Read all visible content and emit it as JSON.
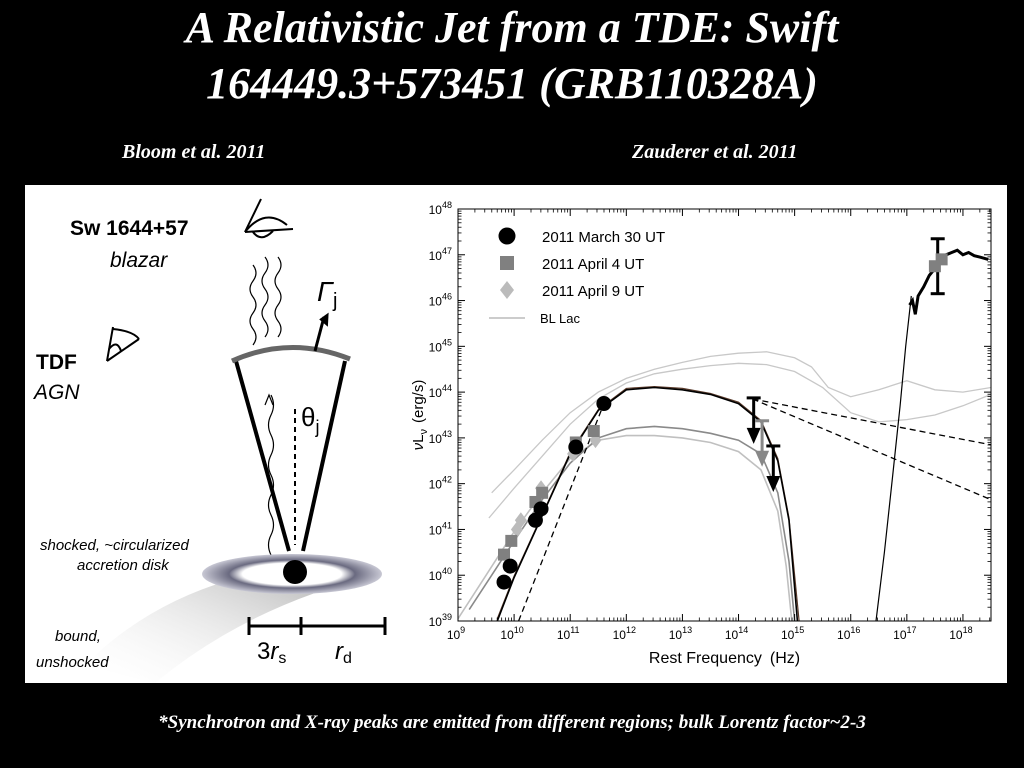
{
  "slide": {
    "title_line1": "A Relativistic Jet from a TDE: Swift",
    "title_line2": "164449.3+573451 (GRB110328A)",
    "cite_left": "Bloom et al. 2011",
    "cite_right": "Zauderer et al. 2011",
    "footnote": "*Synchrotron and X-ray peaks are emitted from different regions; bulk Lorentz factor~2-3"
  },
  "diagram": {
    "source_name": "Sw 1644+57",
    "source_type": "blazar",
    "tdf_label": "TDF",
    "agn_label": "AGN",
    "gamma_symbol": "Γ",
    "gamma_sub": "j",
    "theta_symbol": "θ",
    "theta_sub": "j",
    "disk_label_1": "shocked, ~circularized",
    "disk_label_2": "accretion disk",
    "bound_label_1": "bound,",
    "bound_label_2": "unshocked",
    "rs_prefix": "3",
    "rs_symbol": "r",
    "rs_sub": "s",
    "rd_symbol": "r",
    "rd_sub": "d"
  },
  "chart_data": {
    "type": "scatter",
    "xlabel": "Rest Frequency",
    "xunit": "(Hz)",
    "ylabel_nu": "ν",
    "ylabel_L": "L",
    "ylabel_sub": "ν",
    "yunit": "(erg/s)",
    "xscale": "log",
    "yscale": "log",
    "xlim_log10": [
      9,
      18.5
    ],
    "ylim_log10": [
      39,
      48
    ],
    "xticks": [
      9,
      10,
      11,
      12,
      13,
      14,
      15,
      16,
      17,
      18
    ],
    "yticks": [
      39,
      40,
      41,
      42,
      43,
      44,
      45,
      46,
      47,
      48
    ],
    "tick_base": "10",
    "legend_position": "top-left",
    "legend": [
      {
        "label": "2011 March 30 UT",
        "marker": "circle",
        "color": "#000000"
      },
      {
        "label": "2011 April 4 UT",
        "marker": "square",
        "color": "#808080"
      },
      {
        "label": "2011 April 9 UT",
        "marker": "diamond",
        "color": "#bbbbbb"
      },
      {
        "label": "BL Lac",
        "marker": "line",
        "color": "#bbbbbb"
      }
    ],
    "series": [
      {
        "name": "2011 March 30 UT",
        "marker": "circle",
        "color": "#000000",
        "points": [
          [
            9.82,
            39.85
          ],
          [
            9.93,
            40.2
          ],
          [
            10.38,
            41.2
          ],
          [
            10.48,
            41.45
          ],
          [
            11.1,
            42.8
          ],
          [
            11.6,
            43.75
          ]
        ]
      },
      {
        "name": "2011 April 4 UT",
        "marker": "square",
        "color": "#808080",
        "points": [
          [
            9.82,
            40.45
          ],
          [
            9.95,
            40.75
          ],
          [
            10.38,
            41.6
          ],
          [
            10.5,
            41.8
          ],
          [
            11.1,
            42.9
          ],
          [
            11.42,
            43.15
          ]
        ]
      },
      {
        "name": "2011 April 9 UT",
        "marker": "diamond",
        "color": "#bbbbbb",
        "points": [
          [
            10.05,
            41.0
          ],
          [
            10.12,
            41.2
          ],
          [
            10.48,
            41.9
          ],
          [
            11.05,
            42.65
          ],
          [
            11.45,
            42.95
          ]
        ]
      },
      {
        "name": "X-ray",
        "marker": "square",
        "color": "#808080",
        "points": [
          [
            17.5,
            46.75
          ],
          [
            17.62,
            46.9
          ]
        ]
      }
    ],
    "upper_limits": [
      {
        "x": 14.27,
        "y": 43.0,
        "color": "#000000",
        "bar": true
      },
      {
        "x": 14.42,
        "y": 42.5,
        "color": "#888888",
        "bar": true
      },
      {
        "x": 14.62,
        "y": 41.95,
        "color": "#000000",
        "bar": true
      }
    ],
    "errorbars": [
      {
        "x": 17.55,
        "ylo": 46.15,
        "yhi": 47.35,
        "color": "#000000"
      }
    ],
    "curves": [
      {
        "style": "black-model",
        "points": [
          [
            9.7,
            39.0
          ],
          [
            10.0,
            39.95
          ],
          [
            10.5,
            41.3
          ],
          [
            11.0,
            42.65
          ],
          [
            11.5,
            43.6
          ],
          [
            12.0,
            44.05
          ],
          [
            12.5,
            44.1
          ],
          [
            13.0,
            44.05
          ],
          [
            13.5,
            43.95
          ],
          [
            14.0,
            43.75
          ],
          [
            14.4,
            43.35
          ],
          [
            14.7,
            42.5
          ],
          [
            14.9,
            41.2
          ],
          [
            15.05,
            39.0
          ]
        ]
      },
      {
        "style": "dark-model",
        "points": [
          [
            9.7,
            39.05
          ],
          [
            10.0,
            39.98
          ],
          [
            10.5,
            41.32
          ],
          [
            11.0,
            42.68
          ],
          [
            11.5,
            43.62
          ],
          [
            12.0,
            44.08
          ],
          [
            12.5,
            44.12
          ],
          [
            13.0,
            44.08
          ],
          [
            13.5,
            43.97
          ],
          [
            14.0,
            43.78
          ],
          [
            14.4,
            43.38
          ],
          [
            14.7,
            42.55
          ],
          [
            14.9,
            41.25
          ],
          [
            15.08,
            39.0
          ]
        ]
      },
      {
        "style": "grey-model",
        "points": [
          [
            9.2,
            39.25
          ],
          [
            9.6,
            40.0
          ],
          [
            10.0,
            40.75
          ],
          [
            10.5,
            41.65
          ],
          [
            11.0,
            42.45
          ],
          [
            11.5,
            43.0
          ],
          [
            12.0,
            43.2
          ],
          [
            12.5,
            43.25
          ],
          [
            13.0,
            43.2
          ],
          [
            13.5,
            43.1
          ],
          [
            14.0,
            42.95
          ],
          [
            14.4,
            42.65
          ],
          [
            14.7,
            41.8
          ],
          [
            14.9,
            40.3
          ],
          [
            15.0,
            39.0
          ]
        ]
      },
      {
        "style": "lightgrey-model",
        "points": [
          [
            9.0,
            39.05
          ],
          [
            9.5,
            40.0
          ],
          [
            10.0,
            40.95
          ],
          [
            10.5,
            41.8
          ],
          [
            11.0,
            42.55
          ],
          [
            11.5,
            42.95
          ],
          [
            12.0,
            43.05
          ],
          [
            12.5,
            43.05
          ],
          [
            13.0,
            43.0
          ],
          [
            13.5,
            42.9
          ],
          [
            14.0,
            42.7
          ],
          [
            14.4,
            42.3
          ],
          [
            14.7,
            41.4
          ],
          [
            14.85,
            40.2
          ],
          [
            14.95,
            39.0
          ]
        ]
      },
      {
        "style": "bllac",
        "points": [
          [
            9.6,
            41.8
          ],
          [
            10.0,
            42.3
          ],
          [
            10.5,
            42.95
          ],
          [
            11.0,
            43.55
          ],
          [
            11.5,
            44.0
          ],
          [
            12.0,
            44.3
          ],
          [
            12.5,
            44.5
          ],
          [
            13.0,
            44.65
          ],
          [
            13.5,
            44.78
          ],
          [
            14.0,
            44.85
          ],
          [
            14.5,
            44.88
          ],
          [
            15.0,
            44.75
          ],
          [
            15.3,
            44.55
          ],
          [
            15.6,
            44.1
          ],
          [
            16.0,
            43.9
          ],
          [
            16.5,
            44.05
          ],
          [
            17.0,
            44.25
          ],
          [
            17.5,
            44.05
          ],
          [
            18.0,
            44.0
          ],
          [
            18.5,
            44.1
          ]
        ]
      },
      {
        "style": "bllac",
        "points": [
          [
            9.55,
            41.25
          ],
          [
            10.0,
            41.9
          ],
          [
            10.5,
            42.6
          ],
          [
            11.0,
            43.3
          ],
          [
            11.5,
            43.85
          ],
          [
            12.0,
            44.2
          ],
          [
            12.5,
            44.4
          ],
          [
            13.0,
            44.5
          ],
          [
            13.5,
            44.58
          ],
          [
            14.0,
            44.63
          ],
          [
            14.5,
            44.6
          ],
          [
            15.0,
            44.45
          ],
          [
            15.5,
            44.1
          ],
          [
            16.0,
            43.55
          ],
          [
            16.5,
            43.35
          ],
          [
            17.0,
            43.4
          ],
          [
            17.5,
            43.5
          ],
          [
            18.0,
            43.7
          ],
          [
            18.5,
            43.95
          ]
        ]
      },
      {
        "style": "dashed",
        "points": [
          [
            14.25,
            43.85
          ],
          [
            18.5,
            42.85
          ]
        ]
      },
      {
        "style": "dashed",
        "points": [
          [
            14.25,
            43.85
          ],
          [
            18.5,
            41.65
          ]
        ]
      },
      {
        "style": "dashed",
        "points": [
          [
            10.08,
            39.0
          ],
          [
            11.6,
            43.75
          ]
        ]
      },
      {
        "style": "xray-steep",
        "points": [
          [
            16.45,
            39.0
          ],
          [
            16.6,
            40.5
          ],
          [
            16.75,
            42.2
          ],
          [
            16.88,
            43.7
          ],
          [
            16.98,
            45.0
          ],
          [
            17.08,
            46.1
          ]
        ]
      },
      {
        "style": "xray-data",
        "points": [
          [
            17.05,
            45.9
          ],
          [
            17.1,
            46.0
          ],
          [
            17.15,
            45.7
          ],
          [
            17.2,
            46.1
          ],
          [
            17.3,
            46.3
          ],
          [
            17.4,
            46.55
          ],
          [
            17.5,
            46.7
          ],
          [
            17.6,
            46.85
          ],
          [
            17.7,
            47.0
          ],
          [
            17.8,
            47.05
          ],
          [
            17.9,
            47.1
          ],
          [
            18.0,
            47.0
          ],
          [
            18.1,
            47.05
          ],
          [
            18.2,
            46.98
          ],
          [
            18.3,
            46.95
          ],
          [
            18.45,
            46.9
          ]
        ]
      }
    ]
  }
}
